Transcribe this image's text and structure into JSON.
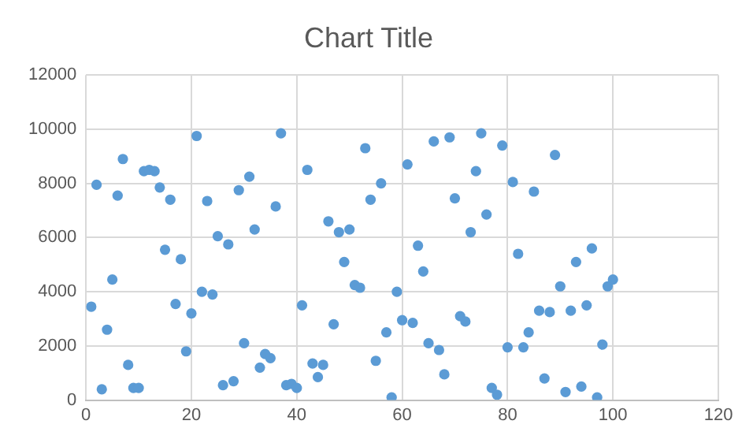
{
  "chart_data": {
    "type": "scatter",
    "title": "Chart Title",
    "x": [
      1,
      2,
      3,
      4,
      5,
      6,
      7,
      8,
      9,
      10,
      11,
      12,
      13,
      14,
      15,
      16,
      17,
      18,
      19,
      20,
      21,
      22,
      23,
      24,
      25,
      26,
      27,
      28,
      29,
      30,
      31,
      32,
      33,
      34,
      35,
      36,
      37,
      38,
      39,
      40,
      41,
      42,
      43,
      44,
      45,
      46,
      47,
      48,
      49,
      50,
      51,
      52,
      53,
      54,
      55,
      56,
      57,
      58,
      59,
      60,
      61,
      62,
      63,
      64,
      65,
      66,
      67,
      68,
      69,
      70,
      71,
      72,
      73,
      74,
      75,
      76,
      77,
      78,
      79,
      80,
      81,
      82,
      83,
      84,
      85,
      86,
      87,
      88,
      89,
      90,
      91,
      92,
      93,
      94,
      95,
      96,
      97,
      98,
      99,
      100
    ],
    "series": [
      {
        "color": "#5b9bd5",
        "values": [
          3450,
          7950,
          400,
          2600,
          4450,
          7550,
          8900,
          1300,
          450,
          450,
          8450,
          8500,
          8450,
          7850,
          5550,
          7400,
          3550,
          5200,
          1800,
          3200,
          9750,
          4000,
          7350,
          3900,
          6050,
          550,
          5750,
          700,
          7750,
          2100,
          8250,
          6300,
          1200,
          1700,
          1550,
          7150,
          9850,
          550,
          600,
          450,
          3500,
          8500,
          1350,
          850,
          1300,
          6600,
          2800,
          6200,
          5100,
          6300,
          4250,
          4150,
          9300,
          7400,
          1450,
          8000,
          2500,
          100,
          4000,
          2950,
          8700,
          2850,
          5700,
          4750,
          2100,
          9550,
          1850,
          950,
          9700,
          7450,
          3100,
          2900,
          6200,
          8450,
          9850,
          6850,
          450,
          200,
          9400,
          1950,
          8050,
          5400,
          1950,
          2500,
          7700,
          3300,
          800,
          3250,
          9050,
          4200,
          300,
          3300,
          5100,
          500,
          3500,
          5600,
          100,
          2050,
          4200,
          4450
        ]
      }
    ],
    "xlim": [
      0,
      120
    ],
    "xticks": [
      0,
      20,
      40,
      60,
      80,
      100,
      120
    ],
    "ylim": [
      0,
      12000
    ],
    "yticks": [
      0,
      2000,
      4000,
      6000,
      8000,
      10000,
      12000
    ],
    "grid": true,
    "marker": "circle",
    "legend": false
  }
}
